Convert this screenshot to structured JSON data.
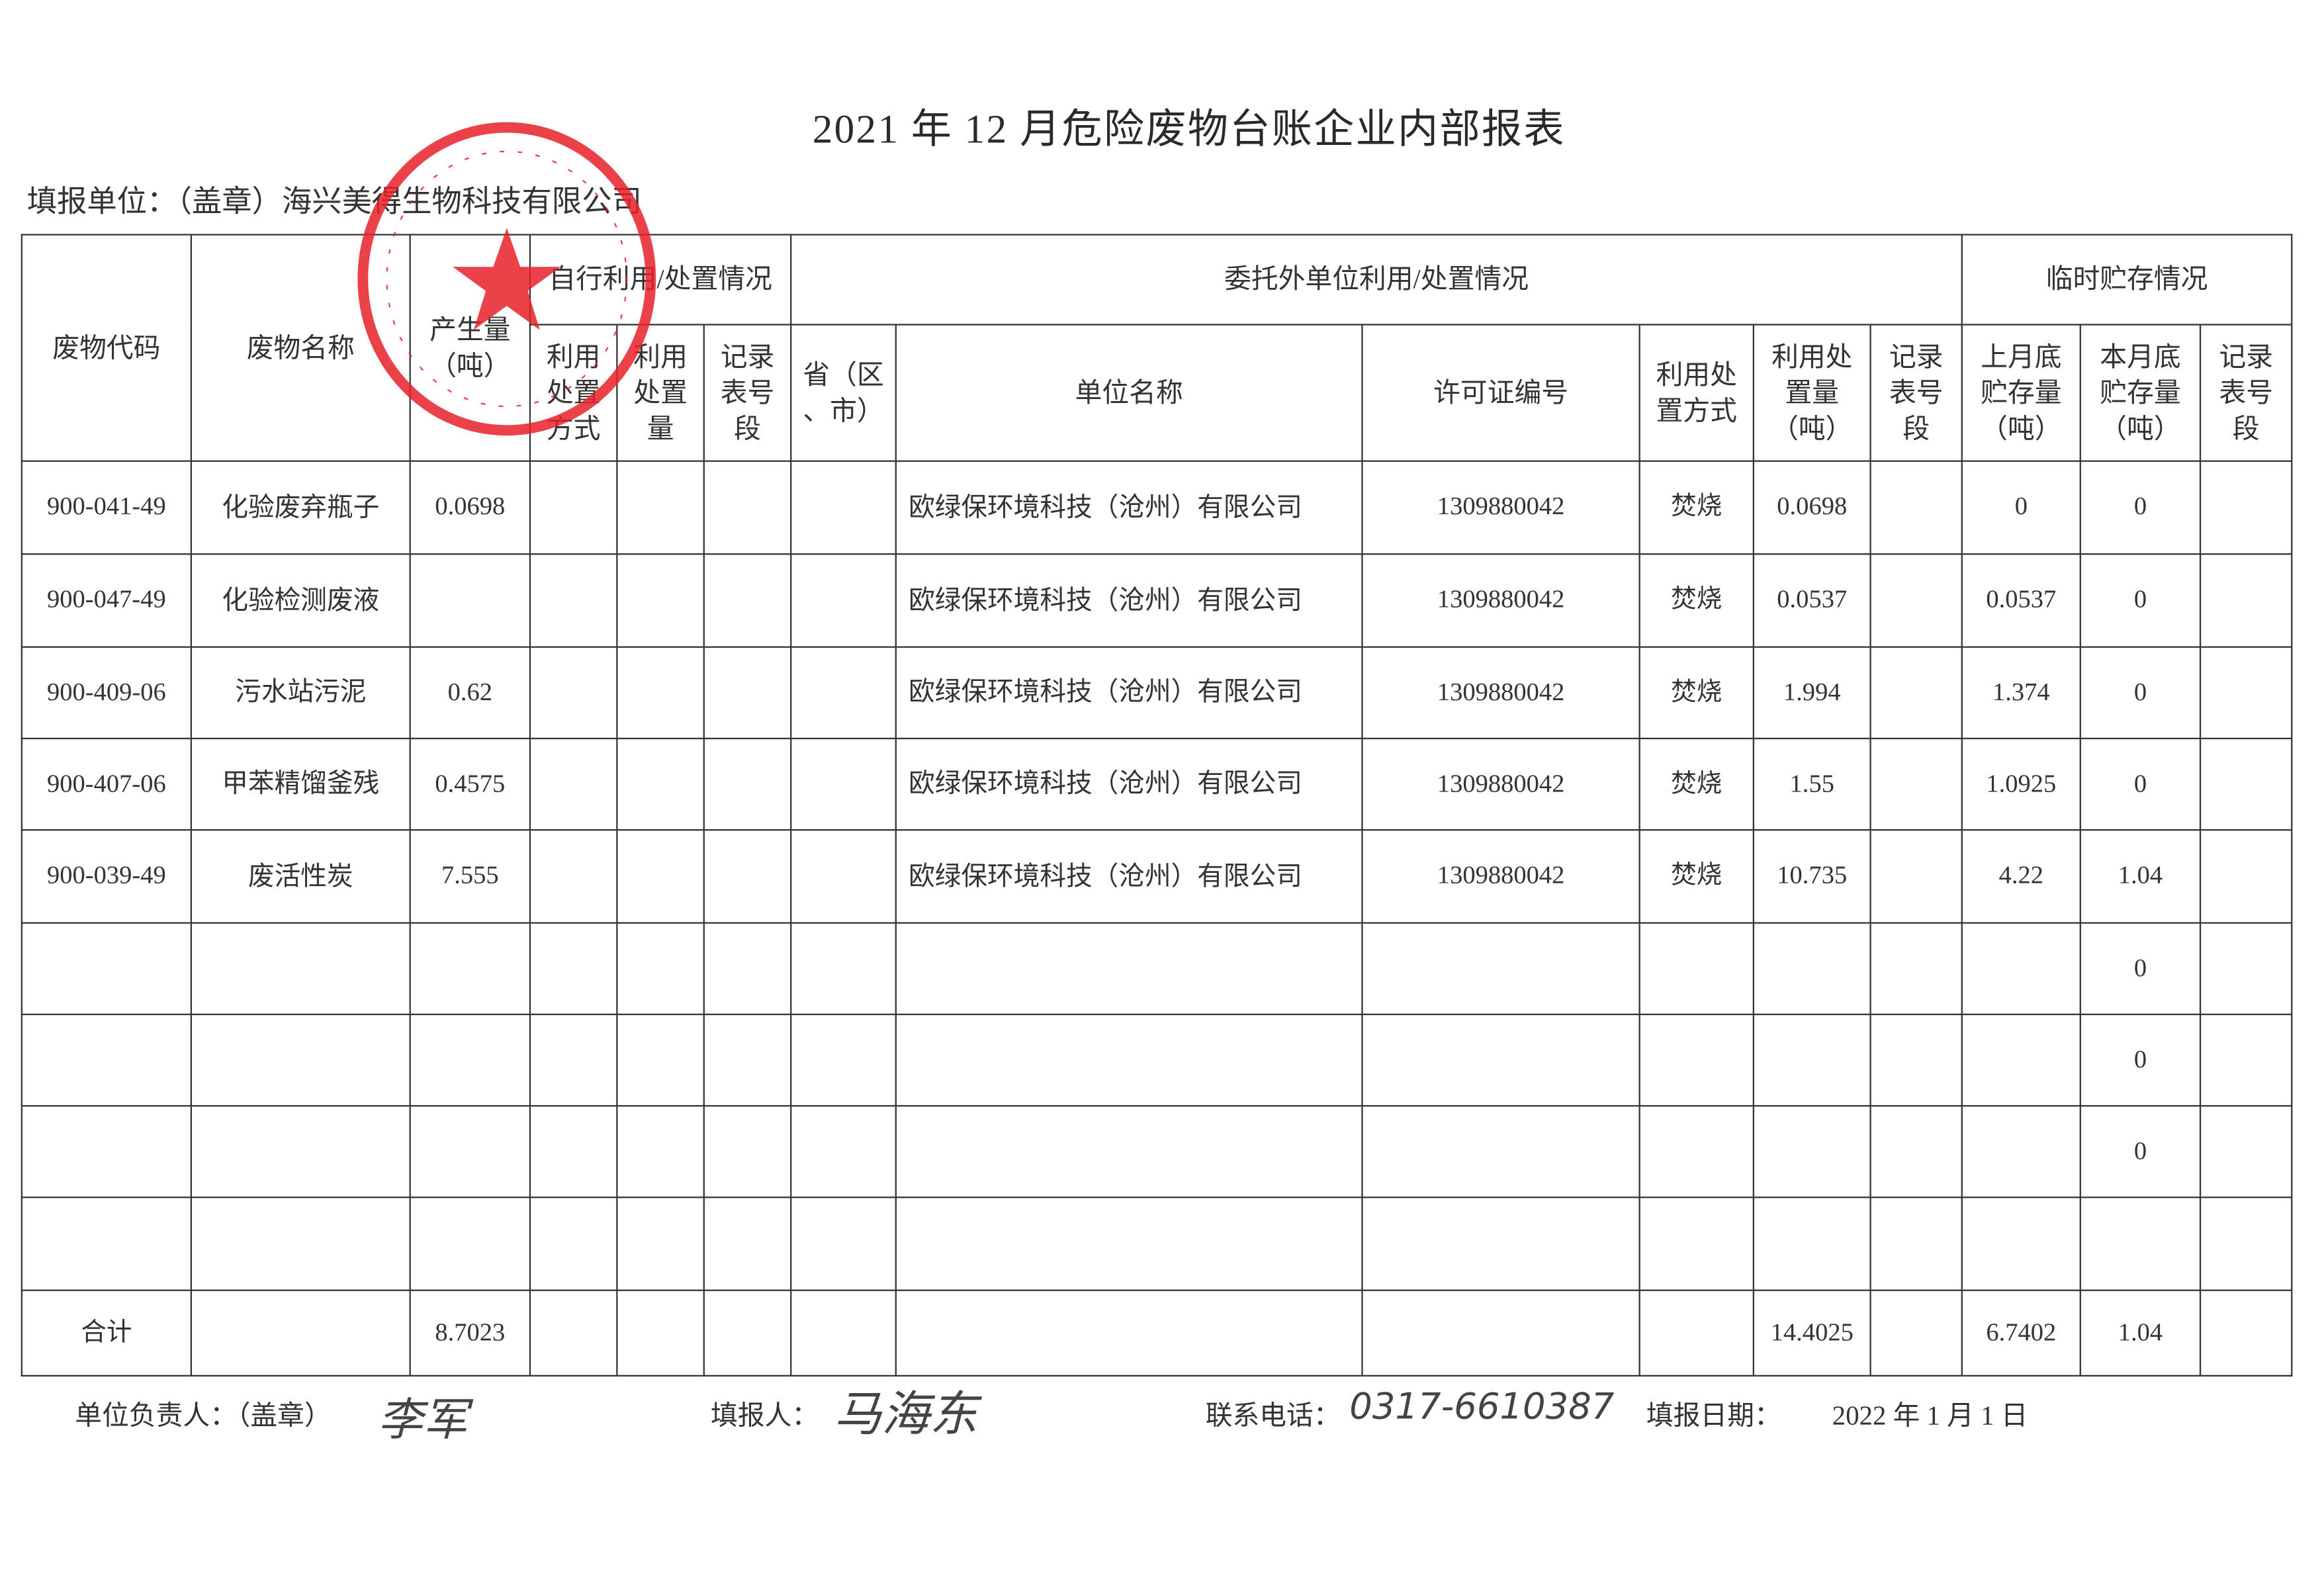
{
  "title": "2021 年 12 月危险废物台账企业内部报表",
  "unit_label": "填报单位：（盖章）海兴美得生物科技有限公司",
  "stamp_text": "海兴美得生物科技有限公司",
  "header": {
    "code": "废物代码",
    "name": "废物名称",
    "amount": "产生量\n（吨）",
    "self_group": "自行利用/处置情况",
    "self_method": "利用\n处置\n方式",
    "self_amount": "利用\n处置\n量",
    "self_record": "记录\n表号\n段",
    "outsource_group": "委托外单位利用/处置情况",
    "province": "省（区\n、市）",
    "company": "单位名称",
    "license": "许可证编号",
    "method": "利用处\n置方式",
    "disposal_amount": "利用处\n置量\n（吨）",
    "record": "记录\n表号\n段",
    "storage_group": "临时贮存情况",
    "last_month": "上月底\n贮存量\n（吨）",
    "this_month": "本月底\n贮存量\n（吨）",
    "storage_record": "记录\n表号\n段"
  },
  "table": {
    "rows": [
      [
        "900-041-49",
        "化验废弃瓶子",
        "0.0698",
        "",
        "",
        "",
        "",
        "欧绿保环境科技（沧州）有限公司",
        "1309880042",
        "焚烧",
        "0.0698",
        "",
        "0",
        "0",
        ""
      ],
      [
        "900-047-49",
        "化验检测废液",
        "",
        "",
        "",
        "",
        "",
        "欧绿保环境科技（沧州）有限公司",
        "1309880042",
        "焚烧",
        "0.0537",
        "",
        "0.0537",
        "0",
        ""
      ],
      [
        "900-409-06",
        "污水站污泥",
        "0.62",
        "",
        "",
        "",
        "",
        "欧绿保环境科技（沧州）有限公司",
        "1309880042",
        "焚烧",
        "1.994",
        "",
        "1.374",
        "0",
        ""
      ],
      [
        "900-407-06",
        "甲苯精馏釜残",
        "0.4575",
        "",
        "",
        "",
        "",
        "欧绿保环境科技（沧州）有限公司",
        "1309880042",
        "焚烧",
        "1.55",
        "",
        "1.0925",
        "0",
        ""
      ],
      [
        "900-039-49",
        "废活性炭",
        "7.555",
        "",
        "",
        "",
        "",
        "欧绿保环境科技（沧州）有限公司",
        "1309880042",
        "焚烧",
        "10.735",
        "",
        "4.22",
        "1.04",
        ""
      ],
      [
        "",
        "",
        "",
        "",
        "",
        "",
        "",
        "",
        "",
        "",
        "",
        "",
        "",
        "0",
        ""
      ],
      [
        "",
        "",
        "",
        "",
        "",
        "",
        "",
        "",
        "",
        "",
        "",
        "",
        "",
        "0",
        ""
      ],
      [
        "",
        "",
        "",
        "",
        "",
        "",
        "",
        "",
        "",
        "",
        "",
        "",
        "",
        "0",
        ""
      ],
      [
        "",
        "",
        "",
        "",
        "",
        "",
        "",
        "",
        "",
        "",
        "",
        "",
        "",
        "",
        ""
      ],
      [
        "合计",
        "",
        "8.7023",
        "",
        "",
        "",
        "",
        "",
        "",
        "",
        "14.4025",
        "",
        "6.7402",
        "1.04",
        ""
      ]
    ]
  },
  "footer": {
    "leader_label": "单位负责人：（盖章）",
    "leader_signature": "李军",
    "filler_label": "填报人：",
    "filler_signature": "马海东",
    "phone_label": "联系电话：",
    "phone": "0317-6610387",
    "date_label": "填报日期：",
    "date": "2022 年 1 月 1 日"
  },
  "colors": {
    "stamp": "#e8202a",
    "ink": "#333333"
  }
}
